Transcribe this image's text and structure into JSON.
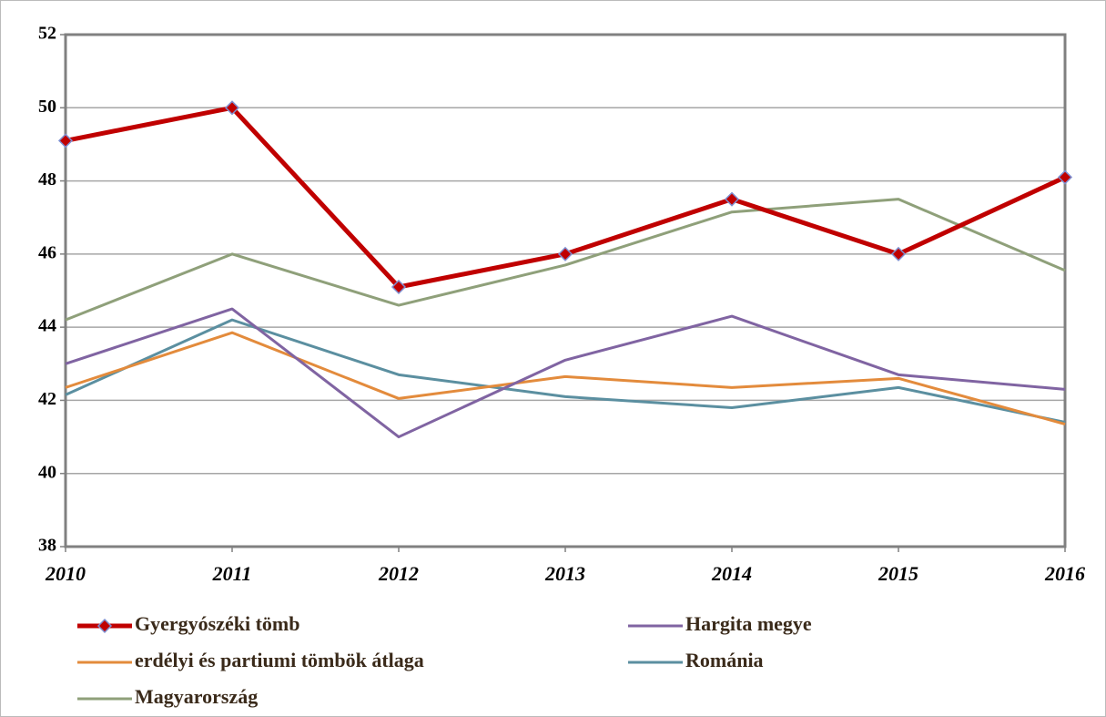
{
  "chart_data": {
    "type": "line",
    "categories": [
      "2010",
      "2011",
      "2012",
      "2013",
      "2014",
      "2015",
      "2016"
    ],
    "series": [
      {
        "name": "Gyergyószéki tömb",
        "color": "#c00000",
        "marker": "diamond",
        "values": [
          49.1,
          50.0,
          45.1,
          46.0,
          47.5,
          46.0,
          48.1
        ]
      },
      {
        "name": "Hargita megye",
        "color": "#8064a2",
        "values": [
          43.0,
          44.5,
          41.0,
          43.1,
          44.3,
          42.7,
          42.3
        ]
      },
      {
        "name": "erdélyi és partiumi tömbök átlaga",
        "color": "#e38b3c",
        "values": [
          42.35,
          43.85,
          42.05,
          42.65,
          42.35,
          42.6,
          41.35
        ]
      },
      {
        "name": "Románia",
        "color": "#5b8fa0",
        "values": [
          42.15,
          44.2,
          42.7,
          42.1,
          41.8,
          42.35,
          41.4
        ]
      },
      {
        "name": "Magyarország",
        "color": "#8fa07a",
        "values": [
          44.2,
          46.0,
          44.6,
          45.7,
          47.15,
          47.5,
          45.55
        ]
      }
    ],
    "ylim": [
      38,
      52
    ],
    "yticks": [
      38,
      40,
      42,
      44,
      46,
      48,
      50,
      52
    ],
    "grid": true
  }
}
